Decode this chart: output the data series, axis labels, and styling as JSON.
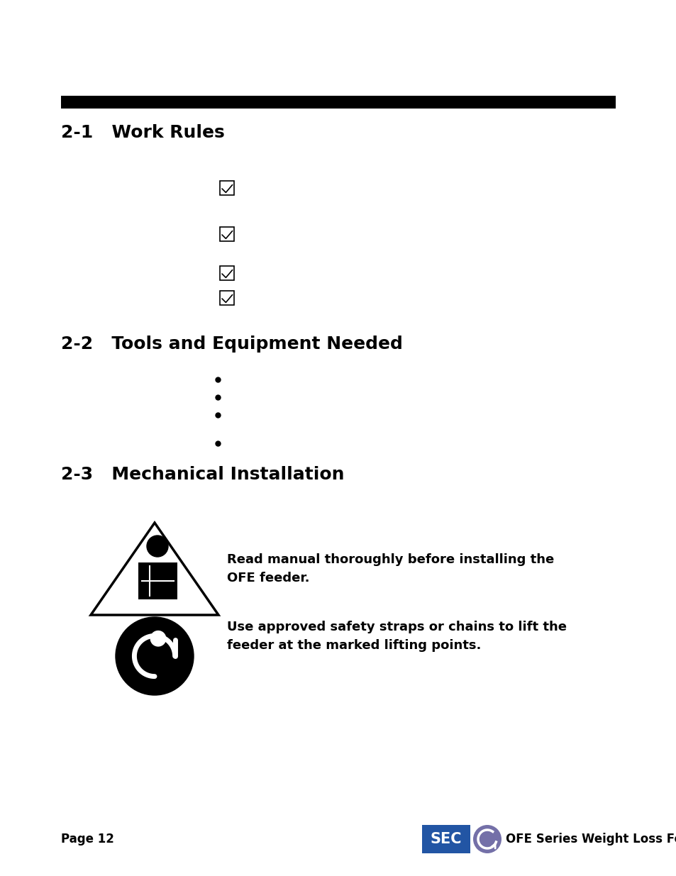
{
  "bg_color": "#ffffff",
  "bar_color": "#000000",
  "text_color": "#000000",
  "heading_fontsize": 18,
  "body_fontsize": 12,
  "page_label": "Page 12",
  "footer_text": "OFE Series Weight Loss Feeders",
  "warning_text1": "Read manual thoroughly before installing the\nOFE feeder.",
  "warning_text2": "Use approved safety straps or chains to lift the\nfeeder at the marked lifting points.",
  "logo_sec_color1": "#2255a4",
  "logo_sec_color2": "#6b7fb8",
  "logo_circle_color": "#7470a8"
}
